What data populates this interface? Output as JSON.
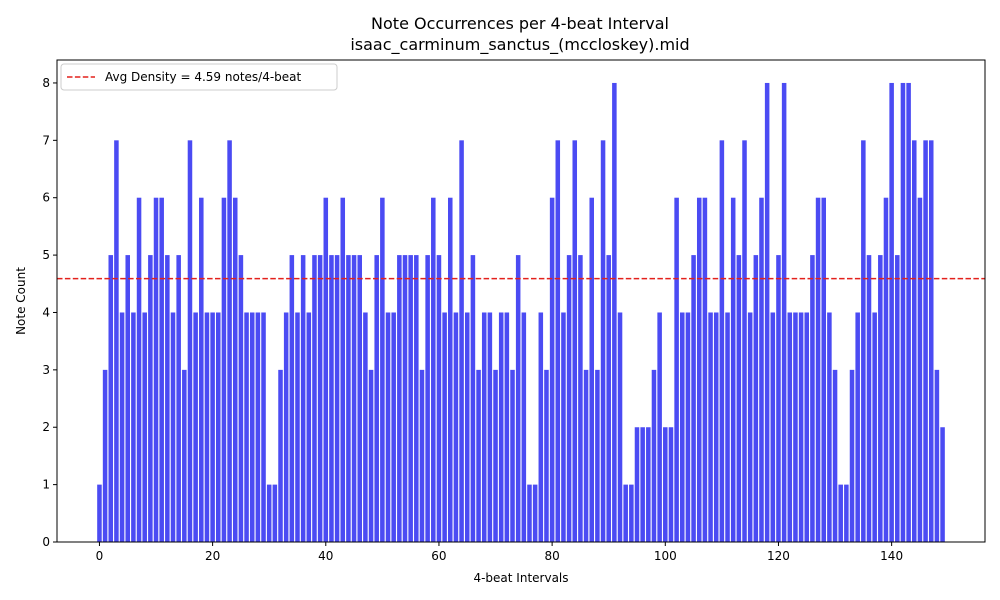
{
  "chart_data": {
    "type": "bar",
    "title": "Note Occurrences per 4-beat Interval",
    "subtitle": "isaac_carminum_sanctus_(mccloskey).mid",
    "xlabel": "4-beat Intervals",
    "ylabel": "Note Count",
    "xlim": [
      -7.5,
      156.5
    ],
    "ylim": [
      0,
      8.4
    ],
    "xticks": [
      0,
      20,
      40,
      60,
      80,
      100,
      120,
      140
    ],
    "yticks": [
      0,
      1,
      2,
      3,
      4,
      5,
      6,
      7,
      8
    ],
    "bar_color": "#4b4bf3",
    "values": [
      1,
      3,
      5,
      7,
      4,
      5,
      4,
      6,
      4,
      5,
      6,
      6,
      5,
      4,
      5,
      3,
      7,
      4,
      6,
      4,
      4,
      4,
      6,
      7,
      6,
      5,
      4,
      4,
      4,
      4,
      1,
      1,
      3,
      4,
      5,
      4,
      5,
      4,
      5,
      5,
      6,
      5,
      5,
      6,
      5,
      5,
      5,
      4,
      3,
      5,
      6,
      4,
      4,
      5,
      5,
      5,
      5,
      3,
      5,
      6,
      5,
      4,
      6,
      4,
      7,
      4,
      5,
      3,
      4,
      4,
      3,
      4,
      4,
      3,
      5,
      4,
      1,
      1,
      4,
      3,
      6,
      7,
      4,
      5,
      7,
      5,
      3,
      6,
      3,
      7,
      5,
      8,
      4,
      1,
      1,
      2,
      2,
      2,
      3,
      4,
      2,
      2,
      6,
      4,
      4,
      5,
      6,
      6,
      4,
      4,
      7,
      4,
      6,
      5,
      7,
      4,
      5,
      6,
      8,
      4,
      5,
      8,
      4,
      4,
      4,
      4,
      5,
      6,
      6,
      4,
      3,
      1,
      1,
      3,
      4,
      7,
      5,
      4,
      5,
      6,
      8,
      5,
      8,
      8,
      7,
      6,
      7,
      7,
      3,
      2
    ],
    "reference_line": {
      "value": 4.59,
      "color": "#e3211c",
      "style": "dashed",
      "label": "Avg Density = 4.59 notes/4-beat"
    },
    "legend_position": "top-left",
    "grid": false
  }
}
